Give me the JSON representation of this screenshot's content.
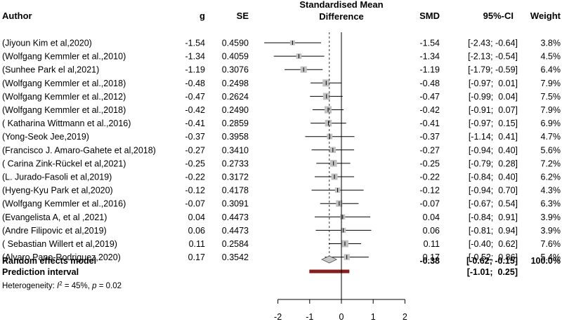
{
  "headers": {
    "author": "Author",
    "g": "g",
    "se": "SE",
    "smd_title_line1": "Standardised Mean",
    "smd_title_line2": "Difference",
    "smd": "SMD",
    "ci": "95%-CI",
    "weight": "Weight"
  },
  "chart_data": {
    "type": "forest",
    "xlim": [
      -2,
      2
    ],
    "ticks": [
      -2,
      -1,
      0,
      1,
      2
    ],
    "tick_labels": [
      "-2",
      "-1",
      "0",
      "1",
      "2"
    ],
    "null_line": 0,
    "studies": [
      {
        "author": "(Jiyoun Kim et al,2020)",
        "g": "-1.54",
        "se": "0.4590",
        "smd": -1.54,
        "lower": -2.43,
        "upper": -0.64,
        "smd_label": "-1.54",
        "ci_label": "[-2.43; -0.64]",
        "weight": 3.8,
        "weight_label": "3.8%"
      },
      {
        "author": "(Wolfgang Kemmler et al.,2010)",
        "g": "-1.34",
        "se": "0.4059",
        "smd": -1.34,
        "lower": -2.13,
        "upper": -0.54,
        "smd_label": "-1.34",
        "ci_label": "[-2.13; -0.54]",
        "weight": 4.5,
        "weight_label": "4.5%"
      },
      {
        "author": "(Sunhee Park el al,2021)",
        "g": "-1.19",
        "se": "0.3076",
        "smd": -1.19,
        "lower": -1.79,
        "upper": -0.59,
        "smd_label": "-1.19",
        "ci_label": "[-1.79; -0.59]",
        "weight": 6.4,
        "weight_label": "6.4%"
      },
      {
        "author": "(Wolfgang Kemmler et al.,2018)",
        "g": "-0.48",
        "se": "0.2498",
        "smd": -0.48,
        "lower": -0.97,
        "upper": 0.01,
        "smd_label": "-0.48",
        "ci_label": "[-0.97;  0.01]",
        "weight": 7.9,
        "weight_label": "7.9%"
      },
      {
        "author": "(Wolfgang Kemmler et al.,2012)",
        "g": "-0.47",
        "se": "0.2624",
        "smd": -0.47,
        "lower": -0.99,
        "upper": 0.04,
        "smd_label": "-0.47",
        "ci_label": "[-0.99;  0.04]",
        "weight": 7.5,
        "weight_label": "7.5%"
      },
      {
        "author": "(Wolfgang Kemmler et al.,2018)",
        "g": "-0.42",
        "se": "0.2490",
        "smd": -0.42,
        "lower": -0.91,
        "upper": 0.07,
        "smd_label": "-0.42",
        "ci_label": "[-0.91;  0.07]",
        "weight": 7.9,
        "weight_label": "7.9%"
      },
      {
        "author": "( Katharina Wittmann et al.,2016)",
        "g": "-0.41",
        "se": "0.2859",
        "smd": -0.41,
        "lower": -0.97,
        "upper": 0.15,
        "smd_label": "-0.41",
        "ci_label": "[-0.97;  0.15]",
        "weight": 6.9,
        "weight_label": "6.9%"
      },
      {
        "author": "(Yong-Seok Jee,2019)",
        "g": "-0.37",
        "se": "0.3958",
        "smd": -0.37,
        "lower": -1.14,
        "upper": 0.41,
        "smd_label": "-0.37",
        "ci_label": "[-1.14;  0.41]",
        "weight": 4.7,
        "weight_label": "4.7%"
      },
      {
        "author": "(Francisco J. Amaro-Gahete et al,2018)",
        "g": "-0.27",
        "se": "0.3410",
        "smd": -0.27,
        "lower": -0.94,
        "upper": 0.4,
        "smd_label": "-0.27",
        "ci_label": "[-0.94;  0.40]",
        "weight": 5.6,
        "weight_label": "5.6%"
      },
      {
        "author": "( Carina Zink-Rückel et al,2021)",
        "g": "-0.25",
        "se": "0.2733",
        "smd": -0.25,
        "lower": -0.79,
        "upper": 0.28,
        "smd_label": "-0.25",
        "ci_label": "[-0.79;  0.28]",
        "weight": 7.2,
        "weight_label": "7.2%"
      },
      {
        "author": "(L. Jurado-Fasoli et al,2019)",
        "g": "-0.22",
        "se": "0.3172",
        "smd": -0.22,
        "lower": -0.84,
        "upper": 0.4,
        "smd_label": "-0.22",
        "ci_label": "[-0.84;  0.40]",
        "weight": 6.2,
        "weight_label": "6.2%"
      },
      {
        "author": "(Hyeng-Kyu Park et al,2020)",
        "g": "-0.12",
        "se": "0.4178",
        "smd": -0.12,
        "lower": -0.94,
        "upper": 0.7,
        "smd_label": "-0.12",
        "ci_label": "[-0.94;  0.70]",
        "weight": 4.3,
        "weight_label": "4.3%"
      },
      {
        "author": "(Wolfgang Kemmler et al.,2016)",
        "g": "-0.07",
        "se": "0.3091",
        "smd": -0.07,
        "lower": -0.67,
        "upper": 0.54,
        "smd_label": "-0.07",
        "ci_label": "[-0.67;  0.54]",
        "weight": 6.3,
        "weight_label": "6.3%"
      },
      {
        "author": "(Evangelista A, et al ,2021)",
        "g": "0.04",
        "se": "0.4473",
        "smd": 0.04,
        "lower": -0.84,
        "upper": 0.91,
        "smd_label": "0.04",
        "ci_label": "[-0.84;  0.91]",
        "weight": 3.9,
        "weight_label": "3.9%"
      },
      {
        "author": "(Andre Filipovic et al,2019)",
        "g": "0.06",
        "se": "0.4473",
        "smd": 0.06,
        "lower": -0.81,
        "upper": 0.94,
        "smd_label": "0.06",
        "ci_label": "[-0.81;  0.94]",
        "weight": 3.9,
        "weight_label": "3.9%"
      },
      {
        "author": "( Sebastian Willert et al,2019)",
        "g": "0.11",
        "se": "0.2584",
        "smd": 0.11,
        "lower": -0.4,
        "upper": 0.62,
        "smd_label": "0.11",
        "ci_label": "[-0.40;  0.62]",
        "weight": 7.6,
        "weight_label": "7.6%"
      },
      {
        "author": "(Alvaro Pano-Rodriguez,2020)",
        "g": "0.17",
        "se": "0.3542",
        "smd": 0.17,
        "lower": -0.52,
        "upper": 0.86,
        "smd_label": "0.17",
        "ci_label": "[-0.52;  0.86]",
        "weight": 5.4,
        "weight_label": "5.4%"
      }
    ],
    "summary": {
      "label": "Random effects model",
      "smd": -0.38,
      "lower": -0.62,
      "upper": -0.15,
      "smd_label": "-0.38",
      "ci_label": "[-0.62; -0.15]",
      "weight_label": "100.0%"
    },
    "prediction": {
      "label": "Prediction interval",
      "lower": -1.01,
      "upper": 0.25,
      "ci_label": "[-1.01;  0.25]"
    },
    "heterogeneity": {
      "prefix": "Heterogeneity: ",
      "i2_symbol": "I",
      "i2_value": " = 45%, ",
      "p_symbol": "p",
      "p_value": " = 0.02"
    }
  },
  "colors": {
    "square": "#c0c0c0",
    "diamond": "#c8c8c8",
    "prediction": "#8b1a1a",
    "line": "#000000"
  }
}
